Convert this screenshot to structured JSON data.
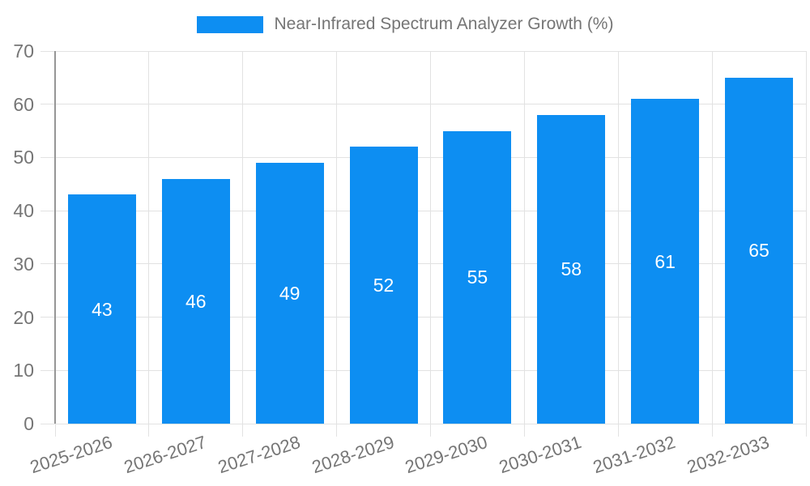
{
  "chart_data": {
    "type": "bar",
    "title": "Near-Infrared Spectrum Analyzer Growth (%)",
    "categories": [
      "2025-2026",
      "2026-2027",
      "2027-2028",
      "2028-2029",
      "2029-2030",
      "2030-2031",
      "2031-2032",
      "2032-2033"
    ],
    "values": [
      43,
      46,
      49,
      52,
      55,
      58,
      61,
      65
    ],
    "xlabel": "",
    "ylabel": "",
    "ylim": [
      0,
      70
    ],
    "yticks": [
      0,
      10,
      20,
      30,
      40,
      50,
      60,
      70
    ],
    "grid": true,
    "legend_position": "top",
    "x_label_rotation_deg": -18,
    "bar_value_labels_shown": true,
    "colors": {
      "bar": "#0d8ef2",
      "bar_value_label": "#ffffff",
      "axis_text": "#757575",
      "gridline": "#e2e2e2",
      "axis_line": "#969696",
      "background": "#ffffff"
    }
  }
}
